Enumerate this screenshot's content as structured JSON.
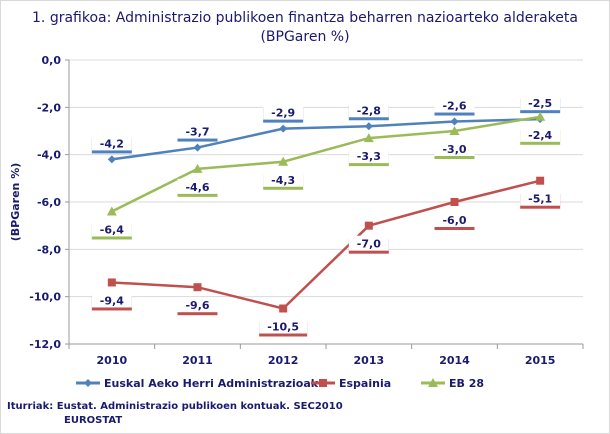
{
  "chart_data": {
    "type": "line",
    "title": "1. grafikoa: Administrazio publikoen finantza beharren nazioarteko alderaketa (BPGaren %)",
    "ylabel": "(BPGaren %)",
    "xlabel": "",
    "categories": [
      "2010",
      "2011",
      "2012",
      "2013",
      "2014",
      "2015"
    ],
    "ylim": [
      -12,
      0
    ],
    "yticks": [
      "0,0",
      "-2,0",
      "-4,0",
      "-6,0",
      "-8,0",
      "-10,0",
      "-12,0"
    ],
    "grid": true,
    "legend": "bottom",
    "series": [
      {
        "name": "Euskal Aeko Herri Administrazioak",
        "color": "#4f81bd",
        "marker": "diamond",
        "values": [
          -4.2,
          -3.7,
          -2.9,
          -2.8,
          -2.6,
          -2.5
        ],
        "labels": [
          "-4,2",
          "-3,7",
          "-2,9",
          "-2,8",
          "-2,6",
          "-2,5"
        ],
        "label_pos": "above"
      },
      {
        "name": "Espainia",
        "color": "#c0504d",
        "marker": "square",
        "values": [
          -9.4,
          -9.6,
          -10.5,
          -7.0,
          -6.0,
          -5.1
        ],
        "labels": [
          "-9,4",
          "-9,6",
          "-10,5",
          "-7,0",
          "-6,0",
          "-5,1"
        ],
        "label_pos": "below"
      },
      {
        "name": "EB 28",
        "color": "#9bbb59",
        "marker": "triangle",
        "values": [
          -6.4,
          -4.6,
          -4.3,
          -3.3,
          -3.0,
          -2.4
        ],
        "labels": [
          "-6,4",
          "-4,6",
          "-4,3",
          "-3,3",
          "-3,0",
          "-2,4"
        ],
        "label_pos": "below"
      }
    ]
  },
  "source": {
    "line1": "Iturriak: Eustat. Administrazio publikoen kontuak. SEC2010",
    "line2": "EUROSTAT"
  }
}
